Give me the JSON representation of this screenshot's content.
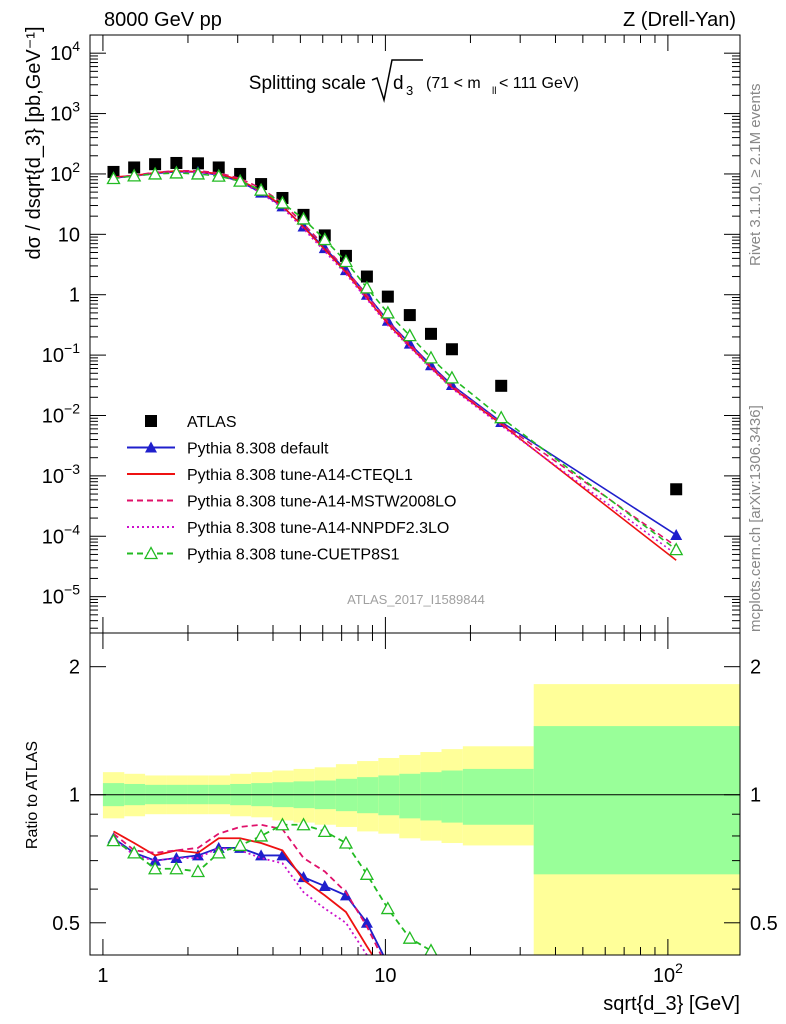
{
  "header": {
    "left": "8000 GeV pp",
    "right": "Z (Drell-Yan)"
  },
  "side": {
    "rivet": "Rivet 3.1.10, ≥ 2.1M events",
    "mcplots": "mcplots.cern.ch [arXiv:1306.3436]"
  },
  "plot_title": {
    "main": "Splitting scale",
    "var": "d",
    "var_sub": "3",
    "range_pre": "(71 < m",
    "range_sub": "ll",
    "range_post": " < 111 GeV)"
  },
  "watermark": "ATLAS_2017_I1589844",
  "chart_data": [
    {
      "type": "scatter",
      "panel": "main",
      "xscale": "log",
      "yscale": "log",
      "xlim": [
        0.9,
        180
      ],
      "ylim": [
        2.5e-06,
        20000
      ],
      "xlabel": "sqrt{d_3} [GeV]",
      "ylabel": "dσ / dsqrt{d_3} [pb,GeV⁻¹]",
      "x_ticks": [
        {
          "v": 1,
          "label": "1"
        },
        {
          "v": 10,
          "label": "10"
        },
        {
          "v": 100,
          "label": "10",
          "sup": "2"
        }
      ],
      "y_ticks": [
        {
          "v": 1e-05,
          "base": "10",
          "sup": "−5"
        },
        {
          "v": 0.0001,
          "base": "10",
          "sup": "−4"
        },
        {
          "v": 0.001,
          "base": "10",
          "sup": "−3"
        },
        {
          "v": 0.01,
          "base": "10",
          "sup": "−2"
        },
        {
          "v": 0.1,
          "base": "10",
          "sup": "−1"
        },
        {
          "v": 1,
          "base": "1",
          "sup": ""
        },
        {
          "v": 10,
          "base": "10",
          "sup": ""
        },
        {
          "v": 100,
          "base": "10",
          "sup": "2"
        },
        {
          "v": 1000,
          "base": "10",
          "sup": "3"
        },
        {
          "v": 10000,
          "base": "10",
          "sup": "4"
        }
      ],
      "legend_position": "lower-left",
      "series": [
        {
          "name": "ATLAS",
          "color": "#000000",
          "style": "solid",
          "marker": "square",
          "x": [
            1.09,
            1.29,
            1.53,
            1.82,
            2.17,
            2.57,
            3.06,
            3.63,
            4.32,
            5.13,
            6.1,
            7.25,
            8.6,
            10.2,
            12.2,
            14.5,
            17.2,
            25.7,
            107
          ],
          "y": [
            108,
            128,
            145,
            152,
            150,
            128,
            100,
            68,
            40,
            21,
            9.6,
            4.4,
            2.0,
            0.93,
            0.46,
            0.225,
            0.125,
            0.031,
            0.0006
          ]
        },
        {
          "name": "Pythia 8.308 default",
          "color": "#1f1fcc",
          "style": "solid",
          "marker": "triangle",
          "x": [
            1.09,
            1.29,
            1.53,
            1.82,
            2.17,
            2.57,
            3.06,
            3.63,
            4.32,
            5.13,
            6.1,
            7.25,
            8.6,
            10.2,
            12.2,
            14.5,
            17.2,
            25.7,
            107
          ],
          "y": [
            86,
            93,
            102,
            109,
            108,
            96,
            75,
            49,
            29,
            13.5,
            5.9,
            2.55,
            1.0,
            0.37,
            0.155,
            0.068,
            0.032,
            0.0078,
            0.000105
          ]
        },
        {
          "name": "Pythia 8.308 tune-A14-CTEQL1",
          "color": "#ee1111",
          "style": "solid",
          "marker": "none",
          "x": [
            1.09,
            1.29,
            1.53,
            1.82,
            2.17,
            2.57,
            3.06,
            3.63,
            4.32,
            5.13,
            6.1,
            7.25,
            8.6,
            10.2,
            12.2,
            14.5,
            17.2,
            25.7,
            107
          ],
          "y": [
            89,
            94,
            105,
            112,
            109,
            101,
            79,
            52,
            29.5,
            13.2,
            5.6,
            2.35,
            0.88,
            0.33,
            0.14,
            0.062,
            0.029,
            0.0072,
            4e-05
          ]
        },
        {
          "name": "Pythia 8.308 tune-A14-MSTW2008LO",
          "color": "#e0106a",
          "style": "dash",
          "marker": "none",
          "x": [
            1.09,
            1.29,
            1.53,
            1.82,
            2.17,
            2.57,
            3.06,
            3.63,
            4.32,
            5.13,
            6.1,
            7.25,
            8.6,
            10.2,
            12.2,
            14.5,
            17.2,
            25.7,
            107
          ],
          "y": [
            87,
            95,
            106,
            113,
            113,
            104,
            84,
            58,
            33,
            15,
            6.3,
            2.6,
            0.97,
            0.36,
            0.15,
            0.066,
            0.031,
            0.0075,
            6.8e-05
          ]
        },
        {
          "name": "Pythia 8.308 tune-A14-NNPDF2.3LO",
          "color": "#cc10cc",
          "style": "dot",
          "marker": "none",
          "x": [
            1.09,
            1.29,
            1.53,
            1.82,
            2.17,
            2.57,
            3.06,
            3.63,
            4.32,
            5.13,
            6.1,
            7.25,
            8.6,
            10.2,
            12.2,
            14.5,
            17.2,
            25.7,
            107
          ],
          "y": [
            85,
            92,
            102,
            108,
            107,
            96,
            74,
            48,
            27.5,
            12.3,
            5.2,
            2.2,
            0.84,
            0.31,
            0.135,
            0.06,
            0.028,
            0.0068,
            5e-05
          ]
        },
        {
          "name": "Pythia 8.308 tune-CUETP8S1",
          "color": "#22bb22",
          "style": "dash",
          "marker": "open-triangle",
          "x": [
            1.09,
            1.29,
            1.53,
            1.82,
            2.17,
            2.57,
            3.06,
            3.63,
            4.32,
            5.13,
            6.1,
            7.25,
            8.6,
            10.2,
            12.2,
            14.5,
            17.2,
            25.7,
            107
          ],
          "y": [
            84,
            93,
            100,
            104,
            100,
            92,
            76,
            54,
            33,
            18,
            8.2,
            3.55,
            1.3,
            0.5,
            0.21,
            0.09,
            0.042,
            0.0092,
            6e-05
          ]
        }
      ]
    },
    {
      "type": "line",
      "panel": "ratio",
      "xscale": "log",
      "yscale": "log",
      "xlim": [
        0.9,
        180
      ],
      "ylim": [
        0.42,
        2.4
      ],
      "ylabel": "Ratio to ATLAS",
      "y_ticks": [
        {
          "v": 0.5,
          "label": "0.5"
        },
        {
          "v": 1,
          "label": "1"
        },
        {
          "v": 2,
          "label": "2"
        }
      ],
      "bands": {
        "edges": [
          1.0,
          1.19,
          1.41,
          1.68,
          2.0,
          2.37,
          2.82,
          3.35,
          3.98,
          4.73,
          5.62,
          6.68,
          7.94,
          9.44,
          11.2,
          13.3,
          15.8,
          18.8,
          33.5,
          180
        ],
        "inner_lo": [
          0.94,
          0.945,
          0.95,
          0.95,
          0.95,
          0.95,
          0.945,
          0.94,
          0.935,
          0.93,
          0.925,
          0.915,
          0.905,
          0.895,
          0.88,
          0.87,
          0.86,
          0.85,
          0.65
        ],
        "inner_hi": [
          1.065,
          1.06,
          1.055,
          1.055,
          1.055,
          1.055,
          1.06,
          1.065,
          1.07,
          1.075,
          1.08,
          1.09,
          1.1,
          1.11,
          1.12,
          1.13,
          1.14,
          1.15,
          1.45
        ],
        "outer_lo": [
          0.88,
          0.89,
          0.9,
          0.9,
          0.9,
          0.9,
          0.89,
          0.885,
          0.87,
          0.86,
          0.85,
          0.84,
          0.82,
          0.81,
          0.79,
          0.78,
          0.77,
          0.76,
          0.42
        ],
        "outer_hi": [
          1.13,
          1.12,
          1.11,
          1.11,
          1.11,
          1.11,
          1.12,
          1.13,
          1.14,
          1.15,
          1.16,
          1.18,
          1.2,
          1.22,
          1.24,
          1.26,
          1.28,
          1.3,
          1.82
        ],
        "inner_color": "#99ff99",
        "outer_color": "#ffff99"
      },
      "series": [
        {
          "name": "Pythia 8.308 default",
          "color": "#1f1fcc",
          "style": "solid",
          "marker": "triangle",
          "x": [
            1.09,
            1.29,
            1.53,
            1.82,
            2.17,
            2.57,
            3.06,
            3.63,
            4.32,
            5.13,
            6.1,
            7.25,
            8.6,
            10.2
          ],
          "y": [
            0.79,
            0.73,
            0.7,
            0.71,
            0.72,
            0.75,
            0.75,
            0.72,
            0.72,
            0.64,
            0.61,
            0.58,
            0.5,
            0.4
          ]
        },
        {
          "name": "Pythia 8.308 tune-A14-CTEQL1",
          "color": "#ee1111",
          "style": "solid",
          "marker": "none",
          "x": [
            1.09,
            1.29,
            1.53,
            1.82,
            2.17,
            2.57,
            3.06,
            3.63,
            4.32,
            5.13,
            6.1,
            7.25,
            8.6,
            9.0
          ],
          "y": [
            0.82,
            0.77,
            0.72,
            0.74,
            0.73,
            0.79,
            0.79,
            0.77,
            0.74,
            0.63,
            0.58,
            0.53,
            0.44,
            0.42
          ]
        },
        {
          "name": "Pythia 8.308 tune-A14-MSTW2008LO",
          "color": "#e0106a",
          "style": "dash",
          "marker": "none",
          "x": [
            1.09,
            1.29,
            1.53,
            1.82,
            2.17,
            2.57,
            3.06,
            3.63,
            4.32,
            5.13,
            6.1,
            7.25,
            8.6,
            10.2
          ],
          "y": [
            0.81,
            0.74,
            0.73,
            0.74,
            0.75,
            0.81,
            0.84,
            0.85,
            0.83,
            0.71,
            0.66,
            0.59,
            0.49,
            0.39
          ]
        },
        {
          "name": "Pythia 8.308 tune-A14-NNPDF2.3LO",
          "color": "#cc10cc",
          "style": "dot",
          "marker": "none",
          "x": [
            1.09,
            1.29,
            1.53,
            1.82,
            2.17,
            2.57,
            3.06,
            3.63,
            4.32,
            5.13,
            6.1,
            7.25,
            8.6,
            9.6
          ],
          "y": [
            0.79,
            0.72,
            0.7,
            0.71,
            0.71,
            0.75,
            0.74,
            0.71,
            0.69,
            0.59,
            0.54,
            0.5,
            0.42,
            0.4
          ]
        },
        {
          "name": "Pythia 8.308 tune-CUETP8S1",
          "color": "#22bb22",
          "style": "dash",
          "marker": "open-triangle",
          "x": [
            1.09,
            1.29,
            1.53,
            1.82,
            2.17,
            2.57,
            3.06,
            3.63,
            4.32,
            5.13,
            6.1,
            7.25,
            8.6,
            10.2,
            12.2,
            14.5
          ],
          "y": [
            0.78,
            0.73,
            0.67,
            0.67,
            0.66,
            0.73,
            0.76,
            0.8,
            0.85,
            0.85,
            0.82,
            0.77,
            0.65,
            0.54,
            0.46,
            0.43
          ]
        }
      ]
    }
  ]
}
